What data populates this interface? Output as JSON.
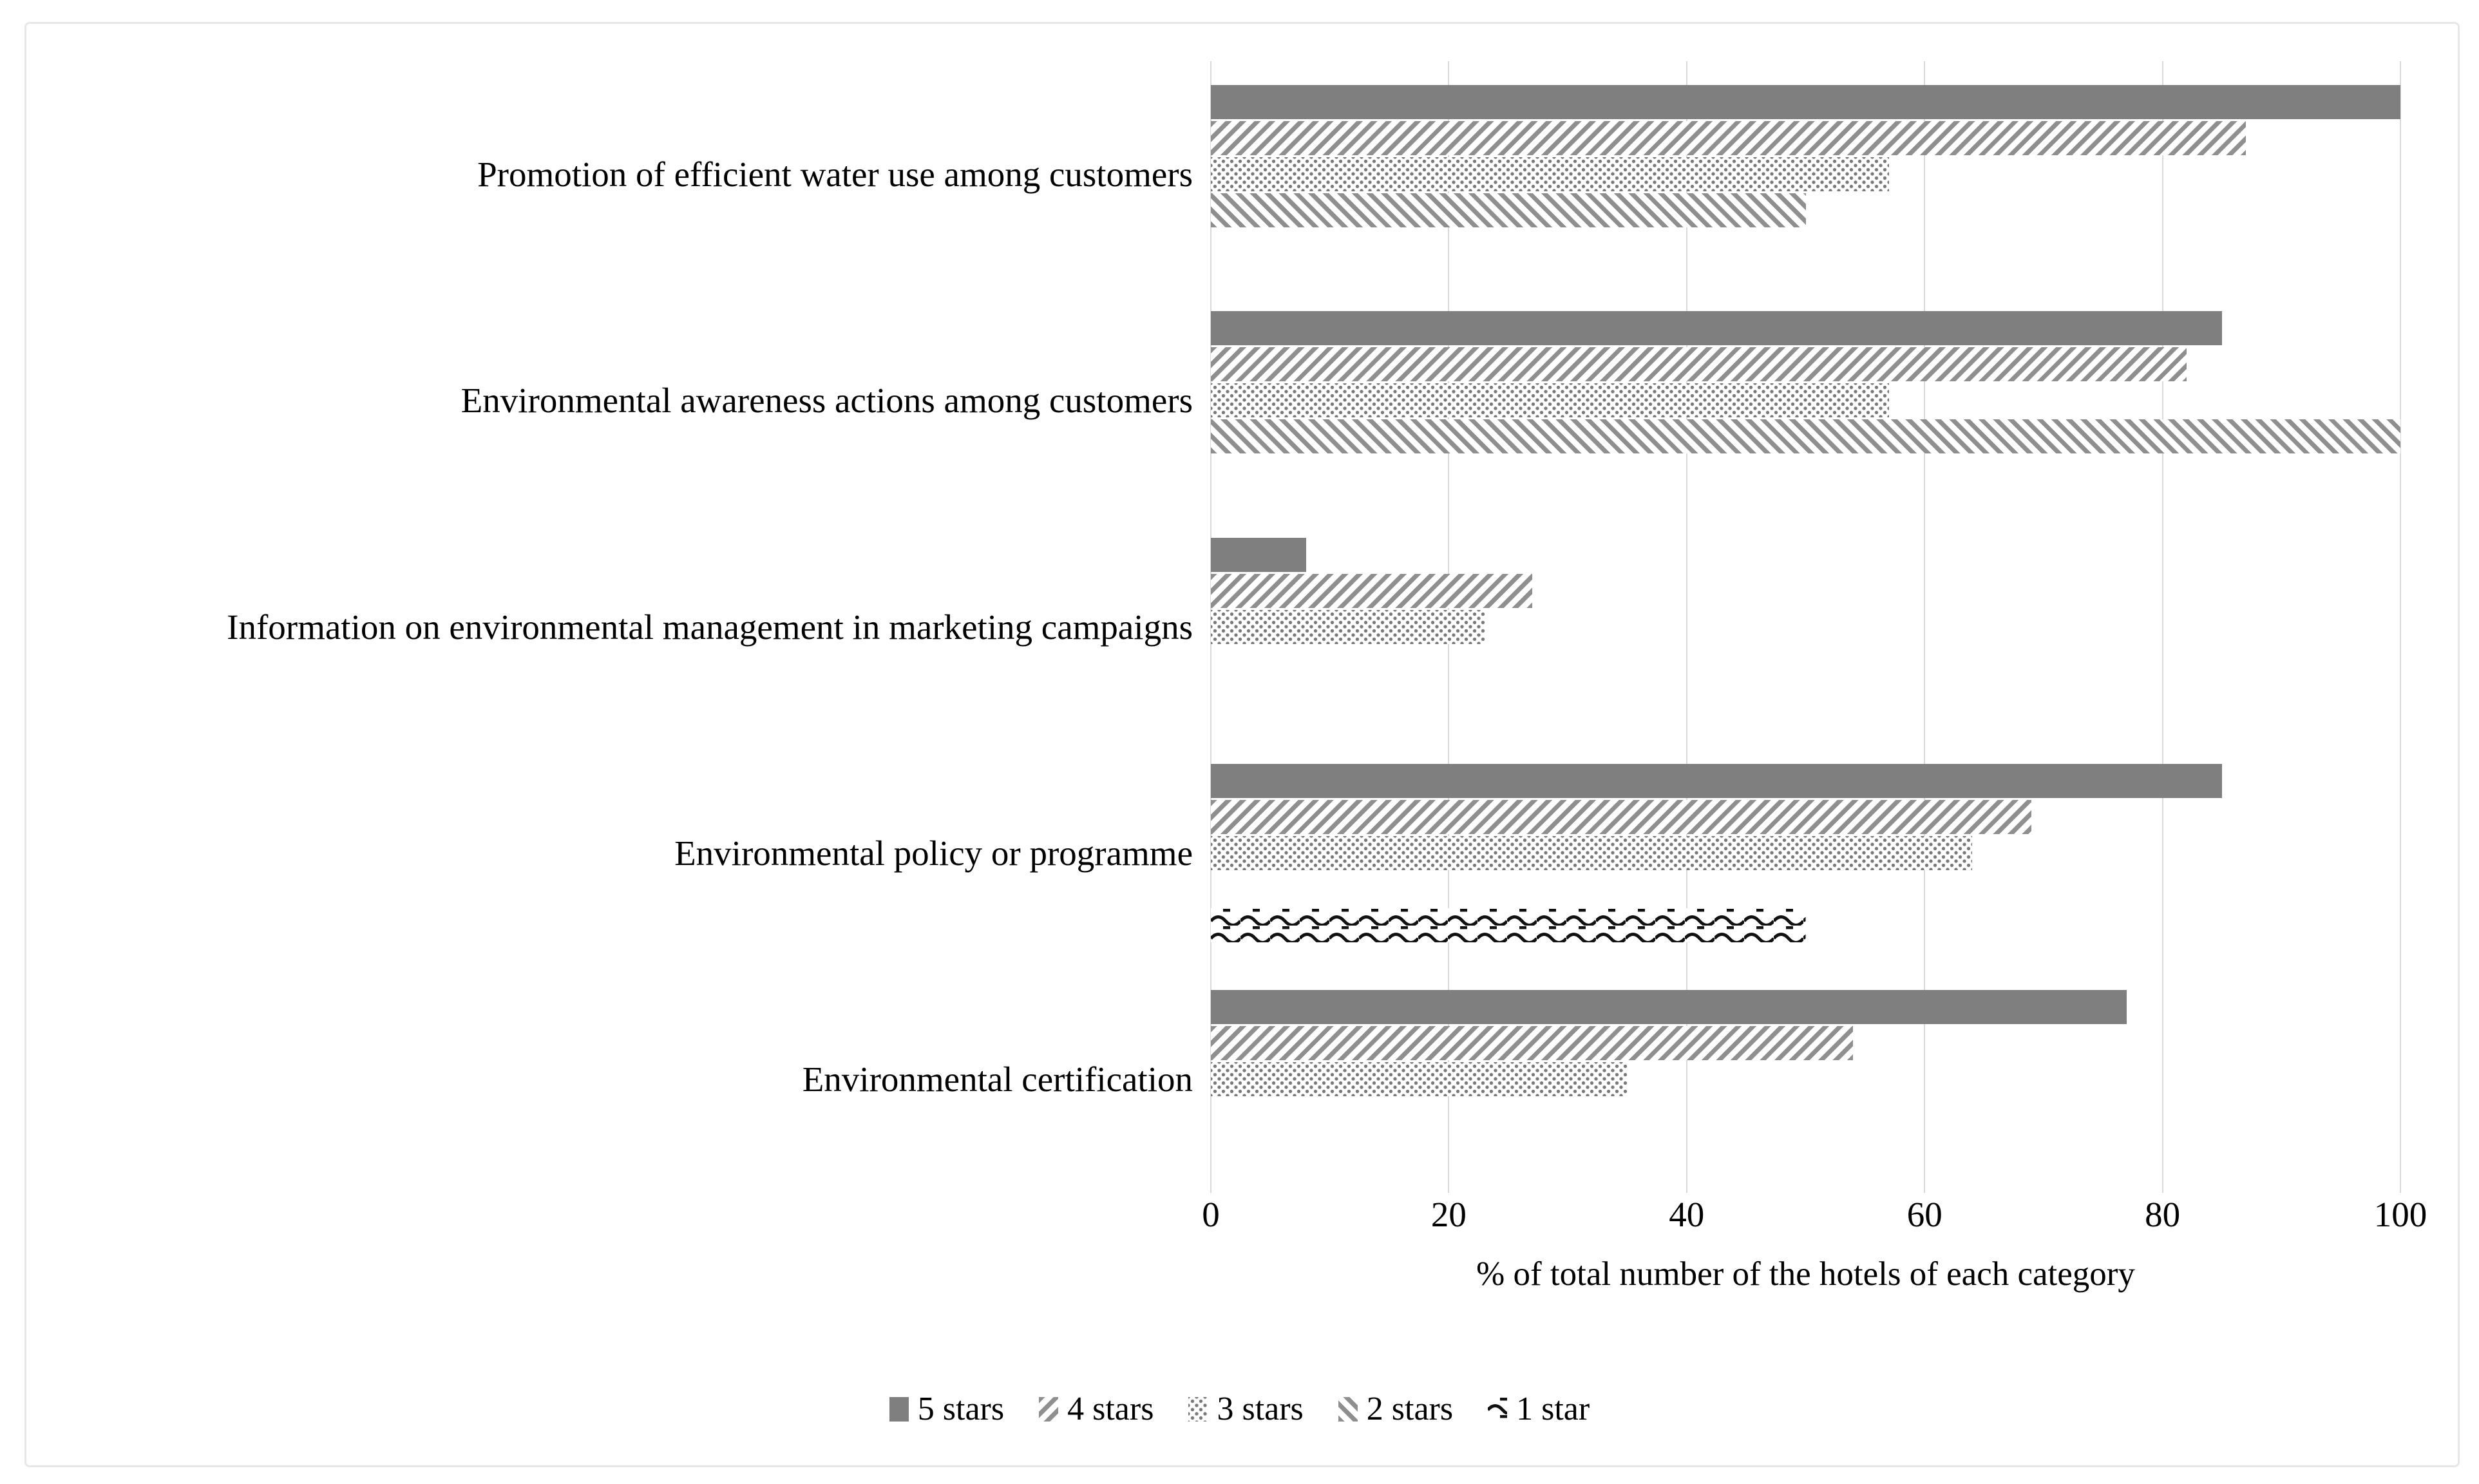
{
  "figure": {
    "background": "#ffffff",
    "border_color": "#e7e7e7"
  },
  "colors": {
    "bar_solid_gray": "#7f7f7f",
    "hatch_gray": "#8f8f8f",
    "dot_gray": "#7a7a7a",
    "wave_black": "#111111",
    "gridline": "#d9d9d9",
    "text": "#000000"
  },
  "chart_data": {
    "type": "bar",
    "orientation": "horizontal",
    "title": "",
    "xlabel": "% of total number of the hotels of each category",
    "ylabel": "",
    "xlim": [
      0,
      100
    ],
    "x_ticks": [
      0,
      20,
      40,
      60,
      80,
      100
    ],
    "grid": "vertical-gridlines-on",
    "legend_position": "bottom-center",
    "categories": [
      "Promotion of efficient water use among customers",
      "Environmental awareness actions among customers",
      "Information on environmental management in marketing campaigns",
      "Environmental policy or programme",
      "Environmental certification"
    ],
    "series": [
      {
        "name": "5 stars",
        "pattern": "solid",
        "values": [
          100,
          85,
          8,
          85,
          77
        ]
      },
      {
        "name": "4 stars",
        "pattern": "diag-up",
        "values": [
          87,
          82,
          27,
          69,
          54
        ]
      },
      {
        "name": "3 stars",
        "pattern": "dots",
        "values": [
          57,
          57,
          23,
          64,
          35
        ]
      },
      {
        "name": "2 stars",
        "pattern": "diag-down",
        "values": [
          50,
          100,
          0,
          0,
          0
        ]
      },
      {
        "name": "1 star",
        "pattern": "wave",
        "values": [
          0,
          0,
          0,
          50,
          0
        ]
      }
    ]
  }
}
